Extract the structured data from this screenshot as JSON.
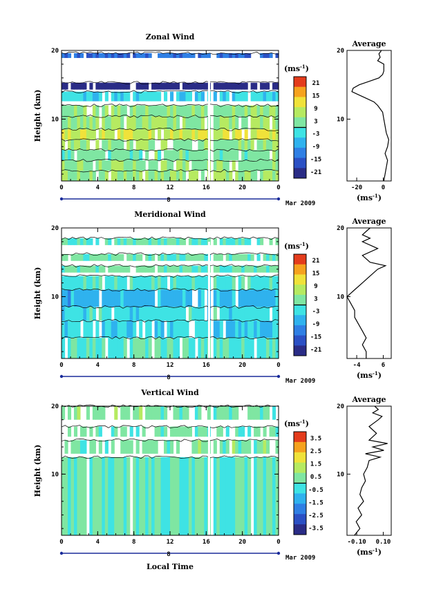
{
  "chart_data": [
    {
      "type": "heatmap",
      "title": "Zonal Wind",
      "ylabel": "Height (km)",
      "xlabel": "",
      "x_ticks": [
        "0",
        "4",
        "8",
        "12",
        "16",
        "20",
        "0"
      ],
      "y_ticks": [
        "20",
        "10"
      ],
      "xlim": [
        0,
        24
      ],
      "ylim": [
        1,
        20
      ],
      "date_day": "8",
      "date_label": "Mar 2009",
      "colorbar": {
        "unit": "(ms",
        "unit_exp": "-1",
        "unit_close": ")",
        "ticks": [
          "21",
          "15",
          "9",
          "3",
          "-3",
          "-9",
          "-15",
          "-21"
        ],
        "range": [
          -21,
          21
        ]
      },
      "layers": [
        {
          "z0": 18.9,
          "z1": 19.6,
          "v": -12
        },
        {
          "z0": 14.3,
          "z1": 15.3,
          "v": -21
        },
        {
          "z0": 12.6,
          "z1": 14.0,
          "v": -3
        },
        {
          "z0": 10.4,
          "z1": 12.0,
          "v": 3
        },
        {
          "z0": 8.5,
          "z1": 10.4,
          "v": 4
        },
        {
          "z0": 7.0,
          "z1": 8.5,
          "v": 8
        },
        {
          "z0": 5.5,
          "z1": 7.0,
          "v": 4
        },
        {
          "z0": 4.0,
          "z1": 5.5,
          "v": 2
        },
        {
          "z0": 2.5,
          "z1": 4.0,
          "v": 3
        },
        {
          "z0": 1.0,
          "z1": 2.5,
          "v": 5
        }
      ],
      "average": {
        "title": "Average",
        "xlabel": "(ms",
        "xlabel_exp": "-1",
        "xlabel_close": ")",
        "x_ticks": [
          "-20",
          "0"
        ],
        "y_ticks": [
          "20",
          "10"
        ],
        "xlim": [
          -28,
          8
        ],
        "profile": {
          "z": [
            1,
            2,
            3,
            4,
            5,
            6,
            7,
            8,
            9,
            10,
            11,
            12,
            12.5,
            13,
            13.5,
            14,
            14.5,
            15,
            15.5,
            16,
            16.5,
            17,
            18,
            18.5,
            19,
            19.5,
            20
          ],
          "v": [
            2,
            3,
            4,
            5,
            3,
            5,
            6,
            4,
            3,
            2,
            1,
            -3,
            -6,
            -12,
            -18,
            -24,
            -23,
            -18,
            -10,
            -2,
            1,
            2,
            2,
            -3,
            -1,
            -2,
            0
          ]
        }
      }
    },
    {
      "type": "heatmap",
      "title": "Meridional Wind",
      "ylabel": "Height (km)",
      "xlabel": "",
      "x_ticks": [
        "0",
        "4",
        "8",
        "12",
        "16",
        "20",
        "0"
      ],
      "y_ticks": [
        "20",
        "10"
      ],
      "xlim": [
        0,
        24
      ],
      "ylim": [
        1,
        20
      ],
      "date_day": "8",
      "date_label": "Mar 2009",
      "colorbar": {
        "unit": "(ms",
        "unit_exp": "-1",
        "unit_close": ")",
        "ticks": [
          "21",
          "15",
          "9",
          "3",
          "-3",
          "-9",
          "-15",
          "-21"
        ],
        "range": [
          -21,
          21
        ]
      },
      "layers": [
        {
          "z0": 17.5,
          "z1": 18.5,
          "v": 0
        },
        {
          "z0": 15.2,
          "z1": 16.2,
          "v": 1
        },
        {
          "z0": 13.5,
          "z1": 14.5,
          "v": 1
        },
        {
          "z0": 11.0,
          "z1": 13.0,
          "v": -1
        },
        {
          "z0": 8.5,
          "z1": 11.0,
          "v": -6
        },
        {
          "z0": 6.5,
          "z1": 8.5,
          "v": -2
        },
        {
          "z0": 4.0,
          "z1": 6.5,
          "v": -3
        },
        {
          "z0": 1.0,
          "z1": 4.0,
          "v": -1
        }
      ],
      "average": {
        "title": "Average",
        "xlabel": "(ms",
        "xlabel_exp": "-1",
        "xlabel_close": ")",
        "x_ticks": [
          "-4",
          "6"
        ],
        "y_ticks": [
          "20",
          "10"
        ],
        "xlim": [
          -5,
          6.5
        ],
        "profile": {
          "z": [
            1,
            2,
            3,
            4,
            5,
            6,
            7,
            8,
            9,
            10,
            11,
            12,
            13,
            14,
            14.5,
            15,
            16,
            17,
            18,
            18.5,
            19,
            19.5,
            20
          ],
          "v": [
            0,
            0,
            -1,
            0,
            -1,
            -2,
            -3,
            -3,
            -4,
            -5,
            -3,
            -1,
            1,
            3,
            5,
            1,
            -1,
            3,
            -1,
            1,
            -1,
            0,
            1
          ]
        }
      }
    },
    {
      "type": "heatmap",
      "title": "Vertical Wind",
      "ylabel": "Height (km)",
      "xlabel": "Local Time",
      "x_ticks": [
        "0",
        "4",
        "8",
        "12",
        "16",
        "20",
        "0"
      ],
      "y_ticks": [
        "20",
        "10"
      ],
      "xlim": [
        0,
        24
      ],
      "ylim": [
        1,
        20
      ],
      "date_day": "8",
      "date_label": "Mar 2009",
      "colorbar": {
        "unit": "(ms",
        "unit_exp": "-1",
        "unit_close": ")",
        "ticks": [
          "3.5",
          "2.5",
          "1.5",
          "0.5",
          "-0.5",
          "-1.5",
          "-2.5",
          "-3.5"
        ],
        "range": [
          -3.5,
          3.5
        ]
      },
      "layers": [
        {
          "z0": 18.0,
          "z1": 20.0,
          "v": 0.3
        },
        {
          "z0": 15.5,
          "z1": 17.0,
          "v": 0.2
        },
        {
          "z0": 13.0,
          "z1": 15.0,
          "v": 0.3
        },
        {
          "z0": 1.0,
          "z1": 12.5,
          "v": 0.1
        }
      ],
      "average": {
        "title": "Average",
        "xlabel": "(ms",
        "xlabel_exp": "-1",
        "xlabel_close": ")",
        "x_ticks": [
          "-0.10",
          "0.10"
        ],
        "y_ticks": [
          "20",
          "10"
        ],
        "xlim": [
          -0.12,
          0.12
        ],
        "profile": {
          "z": [
            1,
            2,
            3,
            4,
            5,
            6,
            7,
            8,
            9,
            10,
            11,
            12,
            12.5,
            13,
            13.5,
            14,
            14.5,
            15,
            16,
            17,
            18,
            18.5,
            19,
            19.5,
            20
          ],
          "v": [
            -0.08,
            -0.05,
            -0.07,
            -0.04,
            -0.06,
            -0.03,
            -0.05,
            -0.04,
            -0.02,
            -0.03,
            -0.01,
            0.0,
            0.06,
            -0.02,
            0.08,
            0.02,
            0.1,
            0.0,
            0.04,
            0.0,
            0.05,
            0.07,
            0.02,
            0.05,
            0.03
          ]
        }
      }
    }
  ]
}
